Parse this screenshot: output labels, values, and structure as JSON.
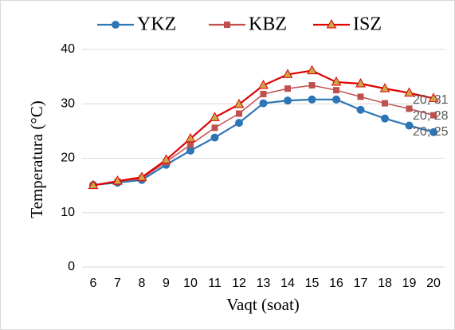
{
  "chart_data": {
    "type": "line",
    "x_label": "Vaqt (soat)",
    "y_label": "Temperatura (°C)",
    "x": [
      6,
      7,
      8,
      9,
      10,
      11,
      12,
      13,
      14,
      15,
      16,
      17,
      18,
      19,
      20
    ],
    "xlim": [
      6,
      20
    ],
    "xticks": [
      6,
      7,
      8,
      9,
      10,
      11,
      12,
      13,
      14,
      15,
      16,
      17,
      18,
      19,
      20
    ],
    "ylim": [
      0,
      40
    ],
    "yticks": [
      0,
      10,
      20,
      30,
      40
    ],
    "grid": true,
    "legend": "top",
    "series": [
      {
        "name": "YKZ",
        "color": "#2e75b6",
        "marker": "circle",
        "marker_color": "#2e75b6",
        "values": [
          15.1,
          15.5,
          16,
          18.8,
          21.4,
          23.8,
          26.5,
          30.1,
          30.6,
          30.8,
          30.8,
          28.9,
          27.3,
          26,
          24.8
        ]
      },
      {
        "name": "KBZ",
        "color": "#c0504d",
        "marker": "square",
        "marker_color": "#c0504d",
        "values": [
          15,
          15.7,
          16.3,
          19.3,
          22.5,
          25.6,
          28.2,
          31.8,
          32.8,
          33.4,
          32.5,
          31.3,
          30.1,
          29.1,
          27.9
        ]
      },
      {
        "name": "ISZ",
        "color": "#e00000",
        "marker": "triangle",
        "marker_color": "#c9a84a",
        "values": [
          15,
          15.8,
          16.5,
          19.7,
          23.6,
          27.5,
          29.9,
          33.4,
          35.4,
          36.1,
          34,
          33.7,
          32.8,
          32,
          31
        ]
      }
    ],
    "annotations": [
      "20; 25",
      "20; 28",
      "20; 31"
    ]
  }
}
